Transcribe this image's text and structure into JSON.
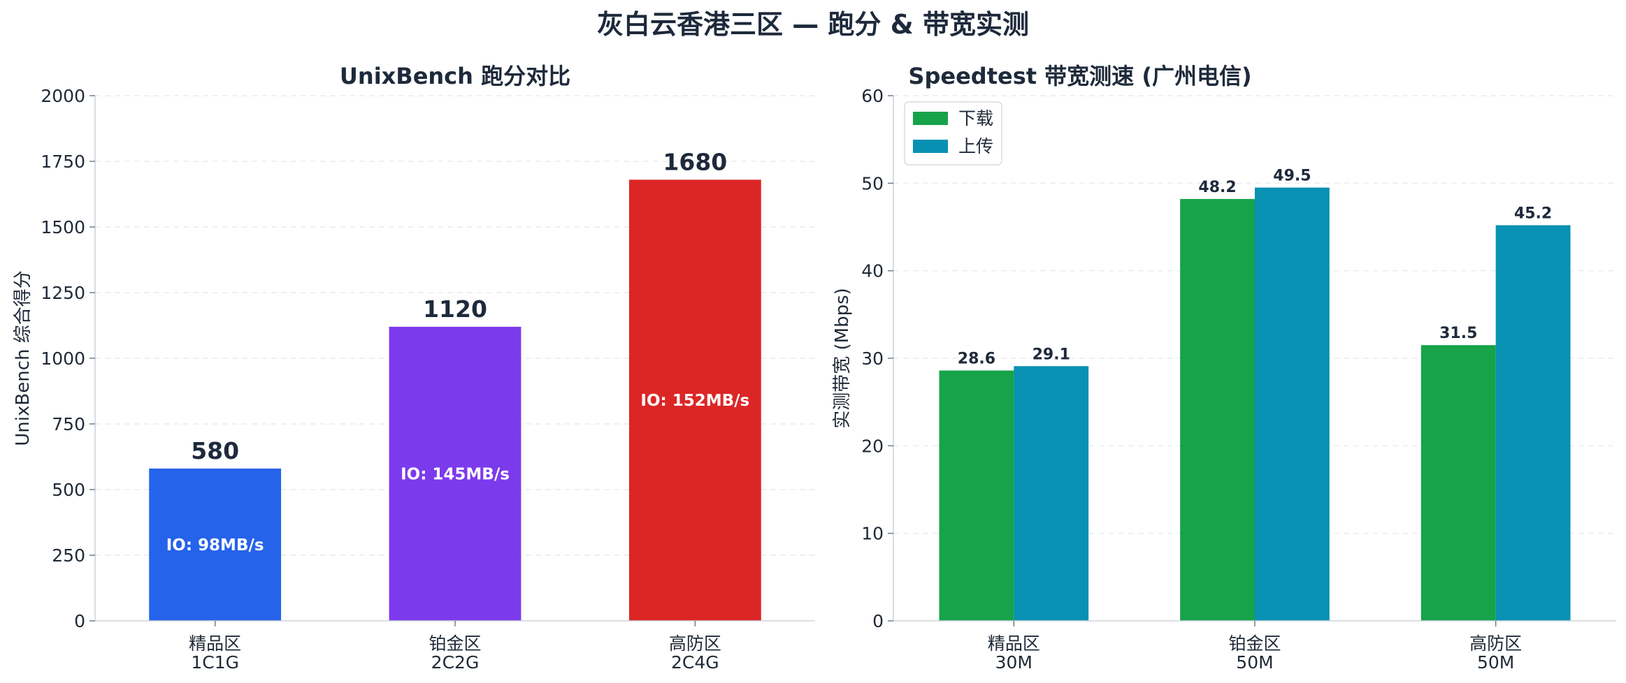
{
  "suptitle": "灰白云香港三区 — 跑分 & 带宽实测",
  "chart_data": [
    {
      "type": "bar",
      "title": "UnixBench 跑分对比",
      "xlabel": "",
      "ylabel": "UnixBench 综合得分",
      "categories": [
        "精品区\n1C1G",
        "铂金区\n2C2G",
        "高防区\n2C4G"
      ],
      "values": [
        580,
        1120,
        1680
      ],
      "value_labels": [
        "580",
        "1120",
        "1680"
      ],
      "annotations": [
        "IO: 98MB/s",
        "IO: 145MB/s",
        "IO: 152MB/s"
      ],
      "colors": [
        "#2563eb",
        "#7c3aed",
        "#dc2626"
      ],
      "ylim": [
        0,
        2000
      ],
      "yticks": [
        0,
        250,
        500,
        750,
        1000,
        1250,
        1500,
        1750,
        2000
      ],
      "grid": true
    },
    {
      "type": "bar",
      "title": "Speedtest 带宽测速 (广州电信)",
      "xlabel": "",
      "ylabel": "实测带宽 (Mbps)",
      "categories": [
        "精品区\n30M",
        "铂金区\n50M",
        "高防区\n50M"
      ],
      "series": [
        {
          "name": "下载",
          "values": [
            28.6,
            48.2,
            31.5
          ],
          "labels": [
            "28.6",
            "48.2",
            "31.5"
          ],
          "color": "#16a34a"
        },
        {
          "name": "上传",
          "values": [
            29.1,
            49.5,
            45.2
          ],
          "labels": [
            "29.1",
            "49.5",
            "45.2"
          ],
          "color": "#0891b2"
        }
      ],
      "ylim": [
        0,
        60
      ],
      "yticks": [
        0,
        10,
        20,
        30,
        40,
        50,
        60
      ],
      "legend": "top-left",
      "grid": true
    }
  ]
}
